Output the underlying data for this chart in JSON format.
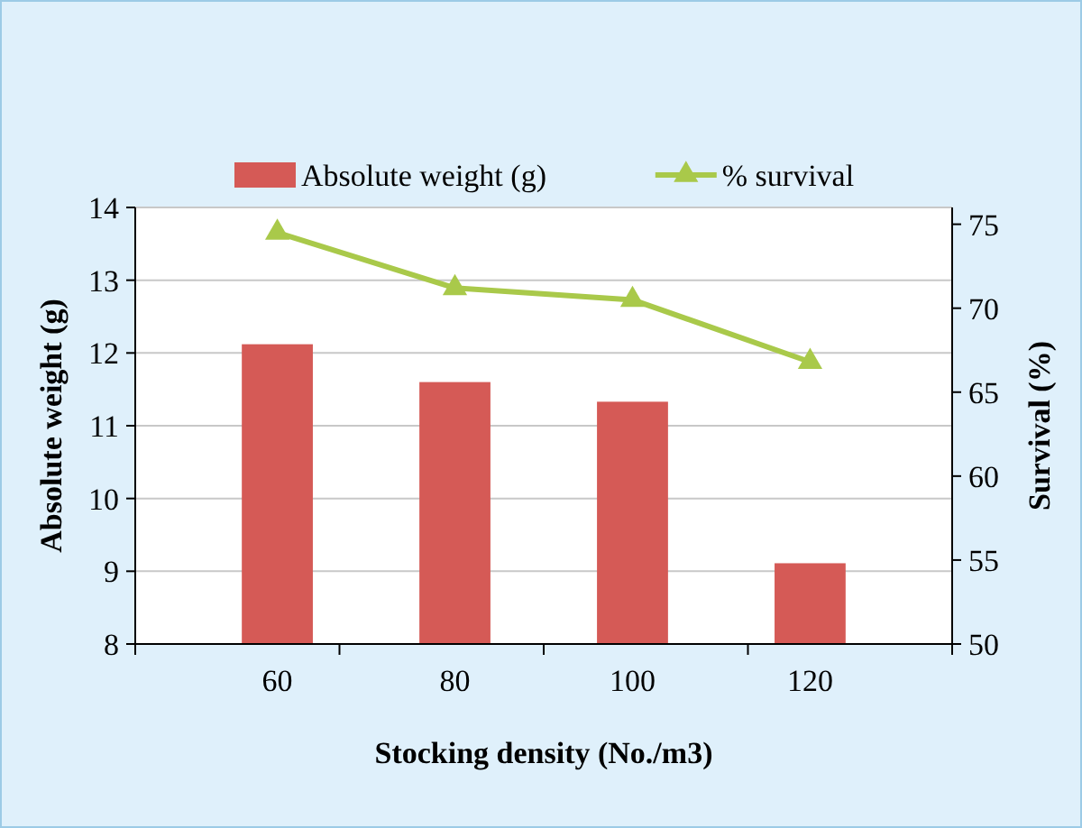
{
  "chart_data": {
    "type": "bar",
    "categories": [
      "60",
      "80",
      "100",
      "120"
    ],
    "xlabel": "Stocking density (No./m3)",
    "ylabel": "Absolute weight (g)",
    "y2label": "Survival (%)",
    "series": [
      {
        "name": "Absolute weight (g)",
        "color": "#d55a56",
        "values": [
          12.12,
          11.6,
          11.33,
          9.11
        ]
      },
      {
        "name": "% survival",
        "type": "line",
        "axis": "y2",
        "color": "#a9c94a",
        "marker": "triangle",
        "values": [
          74.5,
          71.2,
          70.5,
          66.8
        ]
      }
    ],
    "ylim": [
      8,
      14
    ],
    "yticks": [
      8,
      9,
      10,
      11,
      12,
      13,
      14
    ],
    "y2lim": [
      50,
      76
    ],
    "y2ticks": [
      50,
      55,
      60,
      65,
      70,
      75
    ],
    "grid": "y",
    "legend": "top"
  }
}
